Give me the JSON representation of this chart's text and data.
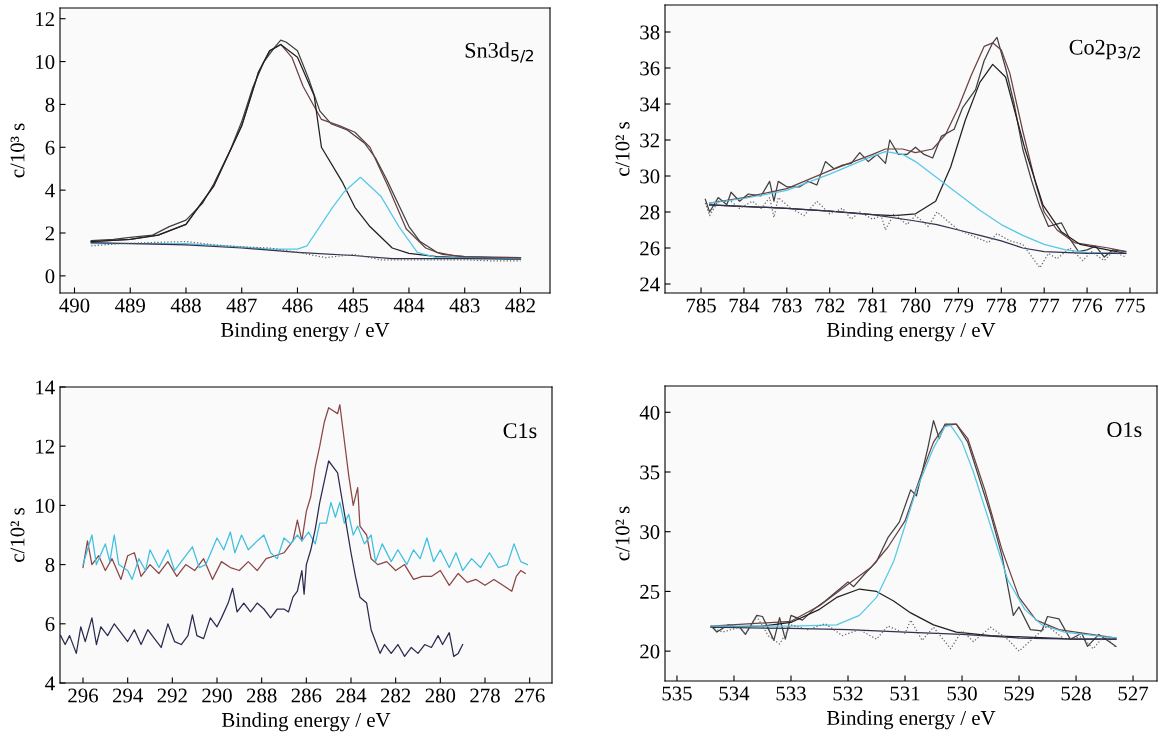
{
  "chart_data": [
    {
      "type": "line",
      "xlabel": "Binding energy / eV",
      "ylabel": "c/10³ s",
      "annotations": [
        "Sn3d$_{5/2}$"
      ],
      "xlim": [
        490.26,
        481.47
      ],
      "xticks": [
        490,
        489,
        488,
        487,
        486,
        485,
        484,
        483,
        482
      ],
      "ylim": [
        -0.8,
        12.5
      ],
      "yticks": [
        0,
        2,
        4,
        6,
        8,
        10,
        12
      ],
      "grid": false,
      "legend": false,
      "series": [
        {
          "color": "#404040",
          "x": [
            489.7,
            489.3,
            489,
            488.6,
            488.3,
            488,
            487.7,
            487.5,
            487.2,
            487,
            486.8,
            486.6,
            486.4,
            486.3,
            486.2,
            486,
            485.8,
            485.6,
            485.4,
            485.2,
            485.1,
            485,
            484.8,
            484.6,
            484.4,
            484.2,
            484,
            483.8,
            483.5,
            483.2,
            483,
            482.5,
            482
          ],
          "values": [
            1.65,
            1.7,
            1.8,
            1.9,
            2.3,
            2.6,
            3.4,
            4.3,
            5.9,
            7.2,
            8.8,
            10.0,
            10.7,
            11.0,
            10.9,
            10.5,
            9.2,
            7.7,
            7.1,
            6.9,
            6.8,
            6.6,
            6.2,
            5.5,
            4.5,
            3.4,
            2.3,
            1.6,
            1.1,
            0.95,
            0.9,
            0.85,
            0.85
          ]
        },
        {
          "color": "#6b4040",
          "x": [
            489.7,
            489,
            488.5,
            488,
            487.5,
            487,
            486.7,
            486.5,
            486.3,
            486.1,
            485.9,
            485.57,
            485.24,
            484.97,
            484.7,
            484.38,
            484.05,
            483.7,
            483.4,
            483,
            482
          ],
          "values": [
            1.6,
            1.7,
            1.9,
            2.4,
            4.2,
            7.0,
            9.5,
            10.5,
            10.8,
            10.2,
            8.85,
            7.3,
            7.0,
            6.7,
            6.0,
            4.2,
            2.2,
            1.3,
            1.0,
            0.9,
            0.85
          ]
        },
        {
          "color": "#202020",
          "x": [
            489.7,
            489,
            488.5,
            488,
            487.5,
            487,
            486.7,
            486.5,
            486.3,
            486,
            485.7,
            485.57,
            485.2,
            484.97,
            484.7,
            484.3,
            484,
            483.5,
            483,
            482
          ],
          "values": [
            1.6,
            1.7,
            1.9,
            2.4,
            4.2,
            7.0,
            9.5,
            10.5,
            10.8,
            10.2,
            8.4,
            6.0,
            4.4,
            3.2,
            2.3,
            1.3,
            1.05,
            0.9,
            0.85,
            0.8
          ]
        },
        {
          "color": "#55c8e8",
          "x": [
            489.7,
            488,
            487,
            486.5,
            486,
            485.83,
            485.37,
            485.17,
            484.87,
            484.5,
            484.18,
            483.85,
            483.5,
            482
          ],
          "values": [
            1.5,
            1.5,
            1.35,
            1.25,
            1.25,
            1.4,
            3.2,
            3.9,
            4.6,
            3.7,
            2.3,
            1.1,
            0.85,
            0.8
          ]
        },
        {
          "color": "#303050",
          "x": [
            489.7,
            488,
            487,
            486,
            485,
            484.3,
            483,
            482
          ],
          "values": [
            1.55,
            1.45,
            1.3,
            1.1,
            0.95,
            0.8,
            0.8,
            0.78
          ]
        },
        {
          "color": "#666666",
          "line_style": "dotted",
          "x": [
            489.7,
            489.2,
            488.7,
            488,
            487.5,
            487,
            486.5,
            486,
            485.5,
            485,
            484.5,
            484,
            483.5,
            483,
            482.5,
            482
          ],
          "values": [
            1.4,
            1.5,
            1.55,
            1.6,
            1.45,
            1.35,
            1.3,
            1.1,
            0.85,
            1.0,
            0.75,
            0.75,
            0.75,
            0.75,
            0.7,
            0.7
          ]
        }
      ]
    },
    {
      "type": "line",
      "xlabel": "Binding energy / eV",
      "ylabel": "c/10² s",
      "annotations": [
        "Co2p$_{3/2}$"
      ],
      "xlim": [
        785.84,
        774.37
      ],
      "xticks": [
        785,
        784,
        783,
        782,
        781,
        780,
        779,
        778,
        777,
        776,
        775
      ],
      "ylim": [
        23.5,
        39.5
      ],
      "yticks": [
        24,
        26,
        28,
        30,
        32,
        34,
        36,
        38
      ],
      "grid": false,
      "legend": false,
      "series": [
        {
          "color": "#404040",
          "x": [
            784.9,
            784.8,
            784.6,
            784.4,
            784.3,
            784.1,
            783.9,
            783.6,
            783.4,
            783.3,
            783.2,
            783,
            782.7,
            782.5,
            782.3,
            782.1,
            781.9,
            781.7,
            781.5,
            781.3,
            781.1,
            780.9,
            780.7,
            780.6,
            780.4,
            780.2,
            780,
            779.8,
            779.6,
            779.4,
            779.1,
            778.9,
            778.6,
            778.4,
            778.2,
            778.1,
            777.9,
            777.7,
            777.5,
            777.3,
            777.1,
            776.9,
            776.6,
            776.4,
            776.2,
            776,
            775.8,
            775.6,
            775.4,
            775.1
          ],
          "values": [
            28.7,
            28.0,
            28.8,
            28.4,
            29.1,
            28.6,
            29.0,
            28.9,
            29.7,
            28.6,
            29.7,
            29.4,
            29.4,
            29.7,
            29.5,
            30.8,
            30.4,
            30.6,
            30.7,
            31.3,
            30.8,
            31.2,
            30.7,
            32.0,
            31.2,
            31.2,
            31.6,
            31.2,
            31.0,
            32.2,
            32.6,
            33.8,
            34.8,
            36.4,
            37.4,
            37.7,
            36.0,
            34.0,
            31.5,
            29.8,
            28.3,
            27.2,
            27.4,
            26.5,
            25.8,
            25.9,
            26.1,
            25.5,
            25.9,
            25.8
          ]
        },
        {
          "color": "#6b4040",
          "x": [
            784.8,
            784,
            783,
            782,
            781,
            780.7,
            780.3,
            780,
            779.6,
            779.3,
            779,
            778.7,
            778.4,
            778.2,
            778,
            777.8,
            777.5,
            777.2,
            777,
            776.7,
            776.3,
            775.5,
            775.1
          ],
          "values": [
            28.5,
            28.8,
            29.3,
            30.3,
            31.2,
            31.5,
            31.5,
            31.3,
            31.5,
            32.3,
            33.8,
            35.6,
            37.2,
            37.4,
            37.0,
            35.7,
            32.5,
            29.6,
            28.0,
            27.0,
            26.3,
            26.0,
            25.8
          ]
        },
        {
          "color": "#202020",
          "x": [
            784.8,
            783,
            782,
            781,
            780.5,
            780,
            779.53,
            779.18,
            778.84,
            778.5,
            778.2,
            777.9,
            777.46,
            777.03,
            776.6,
            776.16,
            775.1
          ],
          "values": [
            28.4,
            28.2,
            28.05,
            27.85,
            27.8,
            27.9,
            28.6,
            30.5,
            33.1,
            35.2,
            36.2,
            35.5,
            31.6,
            28.4,
            26.9,
            26.2,
            25.7
          ]
        },
        {
          "color": "#55c8e8",
          "x": [
            784.8,
            784,
            783,
            782,
            781,
            780.7,
            780.3,
            780,
            779.5,
            779,
            778.5,
            778,
            777.5,
            777,
            776.5,
            776,
            775.1
          ],
          "values": [
            28.5,
            28.75,
            29.2,
            30.1,
            31.1,
            31.35,
            31.2,
            30.8,
            29.9,
            29.0,
            28.1,
            27.3,
            26.7,
            26.2,
            25.9,
            25.75,
            25.7
          ]
        },
        {
          "color": "#303050",
          "x": [
            784.8,
            783,
            782,
            781,
            780,
            779.5,
            779,
            778.5,
            778,
            777.5,
            777,
            776,
            775.1
          ],
          "values": [
            28.4,
            28.2,
            28.05,
            27.85,
            27.5,
            27.3,
            27.0,
            26.7,
            26.4,
            26.0,
            25.8,
            25.7,
            25.7
          ]
        },
        {
          "color": "#666666",
          "line_style": "dotted",
          "x": [
            784.9,
            784.8,
            784.6,
            784.3,
            784.1,
            783.8,
            783.6,
            783.4,
            783.3,
            783.2,
            782.9,
            782.6,
            782.3,
            782,
            781.7,
            781.5,
            781.3,
            781,
            780.8,
            780.7,
            780.5,
            780.2,
            780,
            779.7,
            779.5,
            779.3,
            779,
            778.7,
            778.3,
            778.1,
            777.8,
            777.5,
            777.1,
            776.9,
            776.7,
            776.4,
            776.1,
            775.9,
            775.6,
            775.4,
            775.1
          ],
          "values": [
            28.5,
            27.8,
            28.6,
            28.6,
            28.2,
            28.6,
            28.2,
            28.8,
            27.7,
            28.8,
            28.2,
            27.8,
            28.6,
            27.9,
            28.2,
            27.6,
            28.0,
            27.6,
            27.8,
            27.0,
            27.9,
            27.3,
            27.8,
            27.2,
            28.0,
            27.6,
            27.0,
            26.7,
            26.3,
            26.8,
            26.4,
            26.2,
            24.9,
            25.7,
            25.4,
            26.0,
            25.3,
            25.8,
            25.3,
            25.8,
            25.5
          ]
        }
      ]
    },
    {
      "type": "line",
      "xlabel": "Binding energy / eV",
      "ylabel": "c/10² s",
      "annotations": [
        "C1s"
      ],
      "xlim": [
        297.03,
        275.0
      ],
      "xticks": [
        296,
        294,
        292,
        290,
        288,
        286,
        284,
        282,
        280,
        278,
        276
      ],
      "ylim": [
        4,
        14
      ],
      "yticks": [
        4,
        6,
        8,
        10,
        12,
        14
      ],
      "grid": false,
      "legend": false,
      "series": [
        {
          "color": "#8b4545",
          "x": [
            296,
            295.8,
            295.6,
            295.3,
            295,
            294.7,
            294.3,
            294,
            293.7,
            293.4,
            293,
            292.6,
            292.2,
            291.8,
            291.4,
            291,
            290.6,
            290.2,
            289.8,
            289.4,
            289,
            288.6,
            288.2,
            287.8,
            287.4,
            287,
            286.6,
            286.4,
            286.2,
            286,
            285.8,
            285.6,
            285.4,
            285.2,
            285,
            284.8,
            284.6,
            284.5,
            284.3,
            284.1,
            283.9,
            283.7,
            283.6,
            283.3,
            283.1,
            282.8,
            282.4,
            282,
            281.6,
            281.2,
            280.8,
            280.4,
            280,
            279.6,
            279.2,
            278.8,
            278.4,
            278,
            277.6,
            277.2,
            276.8,
            276.6,
            276.4,
            276.2
          ],
          "values": [
            7.9,
            8.8,
            8.0,
            8.3,
            7.8,
            8.2,
            7.5,
            8.3,
            8.4,
            7.6,
            8.0,
            7.7,
            8.1,
            7.6,
            8.0,
            7.8,
            8.2,
            7.5,
            8.1,
            7.9,
            7.8,
            8.1,
            7.8,
            8.2,
            8.3,
            8.4,
            8.8,
            9.5,
            8.8,
            9.8,
            10.3,
            11.3,
            12.0,
            12.8,
            13.3,
            13.2,
            13.1,
            13.4,
            12.2,
            11.0,
            10.0,
            10.6,
            9.3,
            9.0,
            8.2,
            8.0,
            8.1,
            7.8,
            8.0,
            7.5,
            7.6,
            7.6,
            7.8,
            7.3,
            7.7,
            7.4,
            7.5,
            7.3,
            7.5,
            7.3,
            7.1,
            7.6,
            7.8,
            7.7
          ]
        },
        {
          "color": "#3cbfe0",
          "x": [
            296,
            295.8,
            295.6,
            295.4,
            295,
            294.8,
            294.6,
            294.4,
            294,
            293.8,
            293.5,
            293.2,
            293,
            292.6,
            292.2,
            291.9,
            291.5,
            291.1,
            290.8,
            290.5,
            290,
            289.7,
            289.4,
            289.2,
            288.9,
            288.6,
            288.2,
            287.9,
            287.6,
            287.3,
            287,
            286.7,
            286.4,
            286.2,
            285.9,
            285.6,
            285.4,
            285.1,
            284.9,
            284.7,
            284.5,
            284.3,
            284.1,
            283.9,
            283.7,
            283.4,
            283.1,
            282.9,
            282.6,
            282.2,
            281.9,
            281.5,
            281.2,
            280.9,
            280.6,
            280.3,
            280,
            279.6,
            279.3,
            279,
            278.6,
            278.2,
            277.8,
            277.4,
            277,
            276.7,
            276.4,
            276.1
          ],
          "values": [
            8.0,
            8.5,
            9.0,
            8.0,
            8.7,
            8.1,
            9.0,
            8.0,
            7.8,
            7.5,
            8.2,
            7.8,
            8.5,
            7.9,
            8.5,
            7.8,
            8.2,
            8.6,
            7.9,
            8.0,
            8.9,
            8.5,
            9.1,
            8.4,
            9.0,
            8.5,
            8.8,
            9.0,
            8.4,
            8.2,
            8.9,
            8.7,
            9.0,
            8.8,
            9.1,
            8.7,
            9.4,
            9.4,
            10.1,
            9.6,
            10.1,
            9.4,
            9.7,
            9.0,
            9.3,
            8.7,
            9.0,
            8.1,
            8.7,
            8.1,
            8.5,
            8.0,
            8.5,
            8.2,
            8.9,
            8.1,
            8.5,
            7.9,
            8.4,
            7.8,
            8.2,
            7.9,
            8.4,
            7.9,
            8.0,
            8.7,
            8.1,
            8.0
          ]
        },
        {
          "color": "#2a2a50",
          "x": [
            297,
            296.8,
            296.6,
            296.3,
            296.1,
            295.9,
            295.6,
            295.4,
            295.2,
            294.9,
            294.6,
            294.3,
            294,
            293.7,
            293.4,
            293.1,
            292.8,
            292.5,
            292.2,
            291.9,
            291.6,
            291.3,
            291.1,
            290.9,
            290.6,
            290.3,
            290,
            289.8,
            289.5,
            289.3,
            289.1,
            288.8,
            288.5,
            288.2,
            287.9,
            287.6,
            287.3,
            287,
            286.8,
            286.6,
            286.4,
            286.2,
            286.1,
            286,
            285.8,
            285.6,
            285.4,
            285.2,
            285,
            284.8,
            284.6,
            284.4,
            284.2,
            284,
            283.8,
            283.6,
            283.3,
            283.1,
            282.9,
            282.7,
            282.5,
            282.2,
            281.9,
            281.6,
            281.3,
            281,
            280.7,
            280.4,
            280.1,
            279.9,
            279.6,
            279.4,
            279.2,
            279
          ],
          "values": [
            5.6,
            5.3,
            5.6,
            5.0,
            5.9,
            5.4,
            6.2,
            5.3,
            5.9,
            5.6,
            6.0,
            5.7,
            5.4,
            5.8,
            5.3,
            5.8,
            5.5,
            5.2,
            6.0,
            5.4,
            5.3,
            5.6,
            6.3,
            5.6,
            5.5,
            6.2,
            5.9,
            6.2,
            6.7,
            7.2,
            6.4,
            6.7,
            6.4,
            6.7,
            6.5,
            6.2,
            6.5,
            6.5,
            6.4,
            6.9,
            7.1,
            7.8,
            7.0,
            8.0,
            8.5,
            9.2,
            10.1,
            10.8,
            11.5,
            11.3,
            11.1,
            10.2,
            9.3,
            8.4,
            7.6,
            6.9,
            6.7,
            5.8,
            5.4,
            5.0,
            5.3,
            5.0,
            5.3,
            4.9,
            5.2,
            5.0,
            5.3,
            5.2,
            5.6,
            5.3,
            5.7,
            4.9,
            5.0,
            5.3
          ]
        }
      ]
    },
    {
      "type": "line",
      "xlabel": "Binding energy / eV",
      "ylabel": "c/10² s",
      "annotations": [
        "O1s"
      ],
      "xlim": [
        535.21,
        526.58
      ],
      "xticks": [
        535,
        534,
        533,
        532,
        531,
        530,
        529,
        528,
        527
      ],
      "ylim": [
        17.5,
        42.2
      ],
      "yticks": [
        20,
        25,
        30,
        35,
        40
      ],
      "grid": false,
      "legend": false,
      "series": [
        {
          "color": "#404040",
          "x": [
            534.4,
            534.3,
            534.1,
            533.9,
            533.8,
            533.6,
            533.5,
            533.3,
            533.2,
            533.1,
            533,
            532.8,
            532.6,
            532.4,
            532.2,
            532,
            531.9,
            531.7,
            531.5,
            531.3,
            531.1,
            530.9,
            530.8,
            530.6,
            530.5,
            530.4,
            530.3,
            530.1,
            529.9,
            529.7,
            529.5,
            529.3,
            529.1,
            529,
            528.8,
            528.6,
            528.5,
            528.3,
            528.1,
            527.9,
            527.8,
            527.6,
            527.3
          ],
          "values": [
            22.1,
            21.6,
            22.2,
            22.0,
            21.4,
            23.0,
            22.9,
            20.9,
            22.8,
            21.0,
            23.0,
            22.6,
            23.5,
            24.2,
            25.0,
            25.8,
            25.4,
            26.5,
            27.5,
            29.5,
            30.8,
            33.5,
            33.0,
            37.0,
            39.3,
            37.8,
            39.0,
            39.0,
            37.5,
            34.5,
            31.5,
            28.0,
            23.0,
            23.7,
            21.8,
            21.7,
            22.9,
            22.7,
            21.0,
            21.5,
            20.4,
            21.4,
            20.4
          ]
        },
        {
          "color": "#6b4040",
          "x": [
            534.4,
            533,
            532.5,
            532,
            531.6,
            531.3,
            531,
            530.7,
            530.5,
            530.3,
            530.1,
            529.9,
            529.6,
            529.3,
            529,
            528.7,
            528.3,
            527.3
          ],
          "values": [
            22.1,
            22.5,
            23.8,
            25.6,
            27.0,
            28.7,
            30.9,
            35.0,
            37.5,
            38.9,
            39.0,
            37.8,
            33.5,
            28.5,
            24.5,
            22.6,
            21.8,
            21.1
          ]
        },
        {
          "color": "#202020",
          "x": [
            534.4,
            533.5,
            533,
            532.5,
            532.2,
            531.8,
            531.5,
            531.2,
            530.9,
            530.5,
            530.1,
            529.5,
            528,
            527.3
          ],
          "values": [
            22.0,
            22.1,
            22.4,
            23.5,
            24.5,
            25.2,
            25.0,
            24.2,
            23.2,
            22.2,
            21.6,
            21.3,
            21.0,
            21.0
          ]
        },
        {
          "color": "#55c8e8",
          "x": [
            534.4,
            533,
            532.2,
            531.8,
            531.5,
            531.2,
            531,
            530.8,
            530.5,
            530.3,
            530.2,
            530,
            529.8,
            529.5,
            529.2,
            528.9,
            528.6,
            528.2,
            527.3
          ],
          "values": [
            22.1,
            22.1,
            22.2,
            23.0,
            24.5,
            27.5,
            30.5,
            33.5,
            37.0,
            38.8,
            38.9,
            37.5,
            35.0,
            30.5,
            26.0,
            23.5,
            22.2,
            21.6,
            21.1
          ]
        },
        {
          "color": "#303050",
          "x": [
            534.4,
            533,
            532,
            531,
            530,
            529,
            528,
            527.3
          ],
          "values": [
            22.0,
            21.9,
            21.8,
            21.6,
            21.4,
            21.1,
            21.0,
            21.0
          ]
        },
        {
          "color": "#666666",
          "line_style": "dotted",
          "x": [
            534.4,
            534.2,
            533.9,
            533.8,
            533.6,
            533.4,
            533.2,
            533,
            532.7,
            532.4,
            532.1,
            531.8,
            531.5,
            531.3,
            531,
            530.9,
            530.7,
            530.5,
            530.2,
            530,
            529.8,
            529.5,
            529.2,
            529,
            528.7,
            528.5,
            528.2,
            527.9,
            527.7,
            527.5,
            527.3
          ],
          "values": [
            22.0,
            21.6,
            22.0,
            21.4,
            22.9,
            21.3,
            20.6,
            22.2,
            21.8,
            22.3,
            21.3,
            21.8,
            21.0,
            22.1,
            21.5,
            22.6,
            20.9,
            22.0,
            20.2,
            21.7,
            20.8,
            22.0,
            21.0,
            20.0,
            21.3,
            22.1,
            21.0,
            21.2,
            20.2,
            21.3,
            20.3
          ]
        }
      ]
    }
  ]
}
